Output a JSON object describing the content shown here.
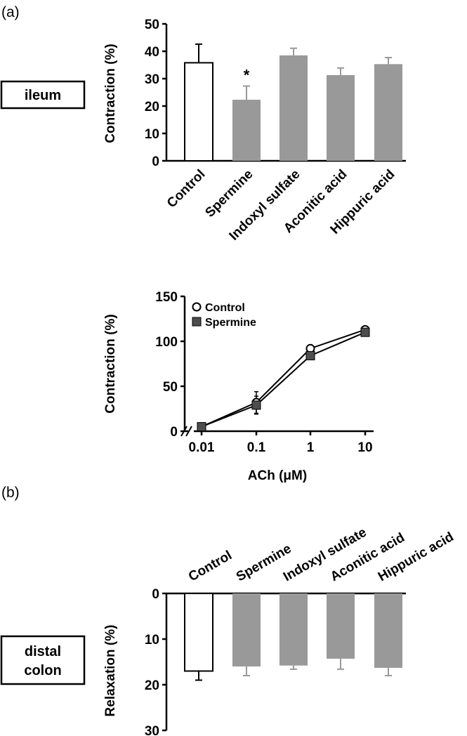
{
  "panel_labels": {
    "a": "(a)",
    "b": "(b)"
  },
  "tissue_labels": {
    "ileum": "ileum",
    "colon_line1": "distal",
    "colon_line2": "colon"
  },
  "colors": {
    "control_fill": "#ffffff",
    "treatment_fill": "#999999",
    "error_bar": "#999999",
    "line": "#000000",
    "square_marker": "#4d4d4d"
  },
  "chart_data": [
    {
      "type": "bar",
      "ylabel": "Contraction (%)",
      "ylim": [
        0,
        50
      ],
      "yticks": [
        "0",
        "10",
        "20",
        "30",
        "40",
        "50"
      ],
      "categories": [
        "Control",
        "Spermine",
        "Indoxyl sulfate",
        "Aconitic acid",
        "Hippuric acid"
      ],
      "values": [
        35.8,
        22.3,
        38.5,
        31.3,
        35.3
      ],
      "errors": [
        6.8,
        5.0,
        2.6,
        2.6,
        2.4
      ],
      "significance": [
        "",
        "*",
        "",
        "",
        ""
      ],
      "grid": false
    },
    {
      "type": "line",
      "xlabel": "ACh (μM)",
      "ylabel": "Contraction (%)",
      "ylim": [
        0,
        150
      ],
      "yticks": [
        "0",
        "50",
        "100",
        "150"
      ],
      "x": [
        "0.01",
        "0.1",
        "1",
        "10"
      ],
      "x_scale": "log",
      "legend_position": "top-left",
      "series": [
        {
          "name": "Control",
          "marker": "open-circle",
          "values": [
            5,
            32,
            92,
            113
          ],
          "errors": [
            1,
            12,
            4,
            3
          ]
        },
        {
          "name": "Spermine",
          "marker": "filled-square",
          "values": [
            5,
            29,
            84,
            110
          ],
          "errors": [
            1,
            10,
            3,
            3
          ]
        }
      ],
      "grid": false
    },
    {
      "type": "bar",
      "ylabel": "Relaxation (%)",
      "ylim": [
        0,
        30
      ],
      "y_inverted": true,
      "yticks": [
        "0",
        "10",
        "20",
        "30"
      ],
      "categories": [
        "Control",
        "Spermine",
        "Indoxyl sulfate",
        "Aconitic acid",
        "Hippuric acid"
      ],
      "values": [
        17.0,
        16.0,
        15.8,
        14.3,
        16.3
      ],
      "errors": [
        2.0,
        2.0,
        0.8,
        2.3,
        1.7
      ],
      "grid": false
    }
  ]
}
